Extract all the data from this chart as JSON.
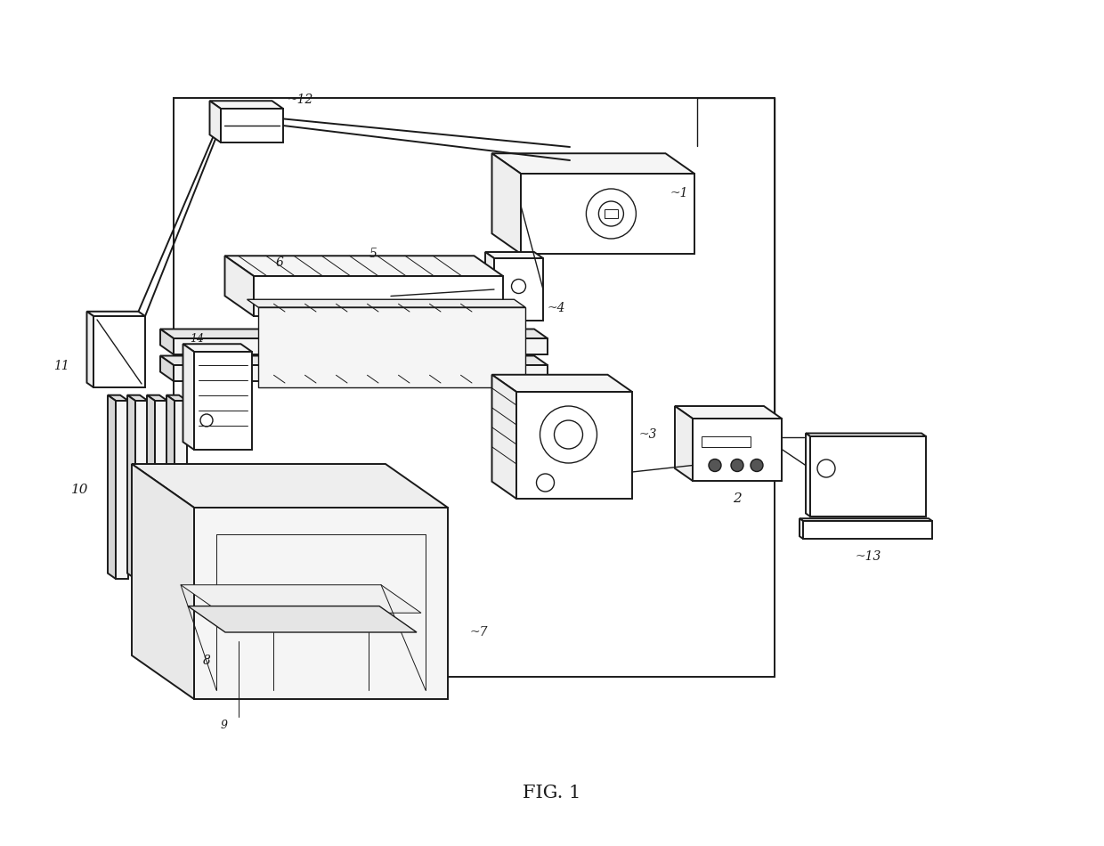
{
  "title": "FIG. 1",
  "lc": "#1a1a1a",
  "lw": 1.4,
  "lw2": 1.0,
  "lwt": 0.7,
  "fc_white": "#ffffff",
  "fc_light": "#f5f5f5",
  "fc_light2": "#eeeeee"
}
